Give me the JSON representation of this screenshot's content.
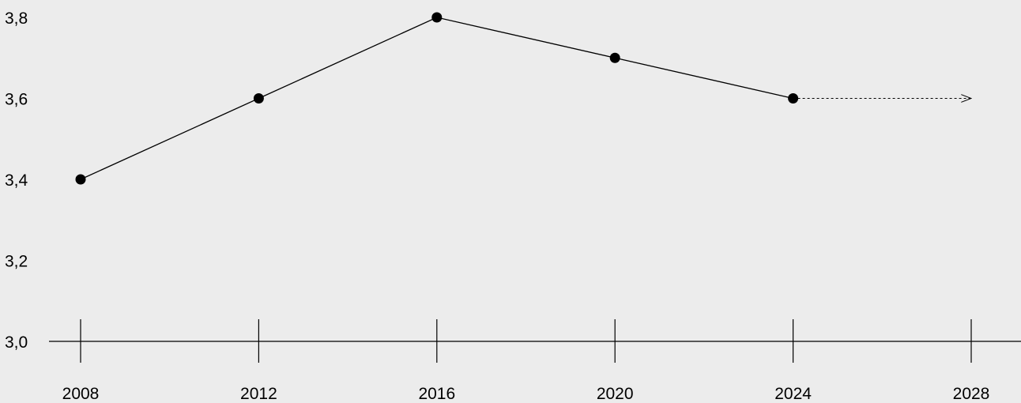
{
  "chart_data": {
    "type": "line",
    "x": [
      2008,
      2012,
      2016,
      2020,
      2024
    ],
    "series": [
      {
        "values": [
          3.4,
          3.6,
          3.8,
          3.7,
          3.6
        ]
      }
    ],
    "projection": {
      "from": [
        2024,
        3.6
      ],
      "to": [
        2028,
        3.6
      ],
      "style": "dashed-arrow"
    },
    "xticks": [
      2008,
      2012,
      2016,
      2020,
      2024,
      2028
    ],
    "xtick_labels": [
      "2008",
      "2012",
      "2016",
      "2020",
      "2024",
      "2028"
    ],
    "yticks": [
      3.0,
      3.2,
      3.4,
      3.6,
      3.8
    ],
    "ytick_labels": [
      "3,0",
      "3,2",
      "3,4",
      "3,6",
      "3,8"
    ],
    "xlim": [
      2008,
      2028
    ],
    "ylim": [
      3.0,
      3.8
    ],
    "grid": false,
    "title": "",
    "xlabel": "",
    "ylabel": ""
  },
  "colors": {
    "background": "#ececec",
    "line": "#000000",
    "marker": "#000000",
    "text": "#000000"
  }
}
